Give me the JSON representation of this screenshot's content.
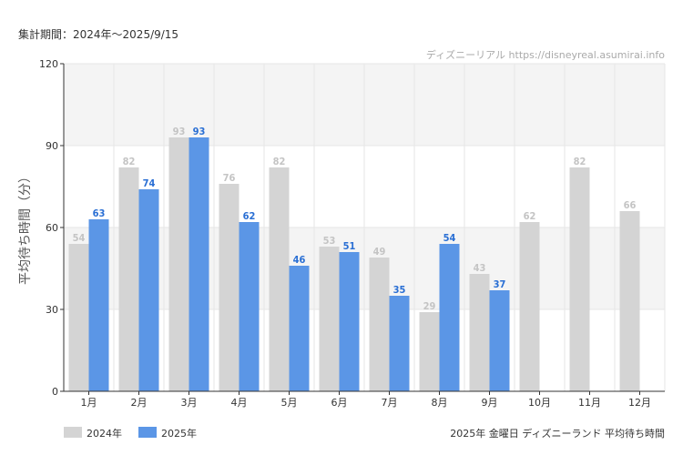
{
  "period_label": "集計期間：2024年～2025/9/15",
  "footer_label": "2025年 金曜日 ディズニーランド 平均待ち時間",
  "watermark": "ディズニーリアル https://disneyreal.asumirai.info",
  "colors": {
    "s2024": "#d4d4d4",
    "s2025": "#5b96e6",
    "label2024": "#c4c4c4",
    "label2025": "#2a6fd4",
    "band": "#f4f4f4",
    "grid": "#e6e6e6",
    "axis": "#333333"
  },
  "chart_data": {
    "type": "bar",
    "ylabel": "平均待ち時間（分）",
    "ylim": [
      0,
      120
    ],
    "yticks": [
      0,
      30,
      60,
      90,
      120
    ],
    "categories": [
      "1月",
      "2月",
      "3月",
      "4月",
      "5月",
      "6月",
      "7月",
      "8月",
      "9月",
      "10月",
      "11月",
      "12月"
    ],
    "series": [
      {
        "name": "2024年",
        "values": [
          54,
          82,
          93,
          76,
          82,
          53,
          49,
          29,
          43,
          62,
          82,
          66
        ]
      },
      {
        "name": "2025年",
        "values": [
          63,
          74,
          93,
          62,
          46,
          51,
          35,
          54,
          37,
          null,
          null,
          null
        ]
      }
    ],
    "legend": "bottom-left",
    "grid": true
  }
}
